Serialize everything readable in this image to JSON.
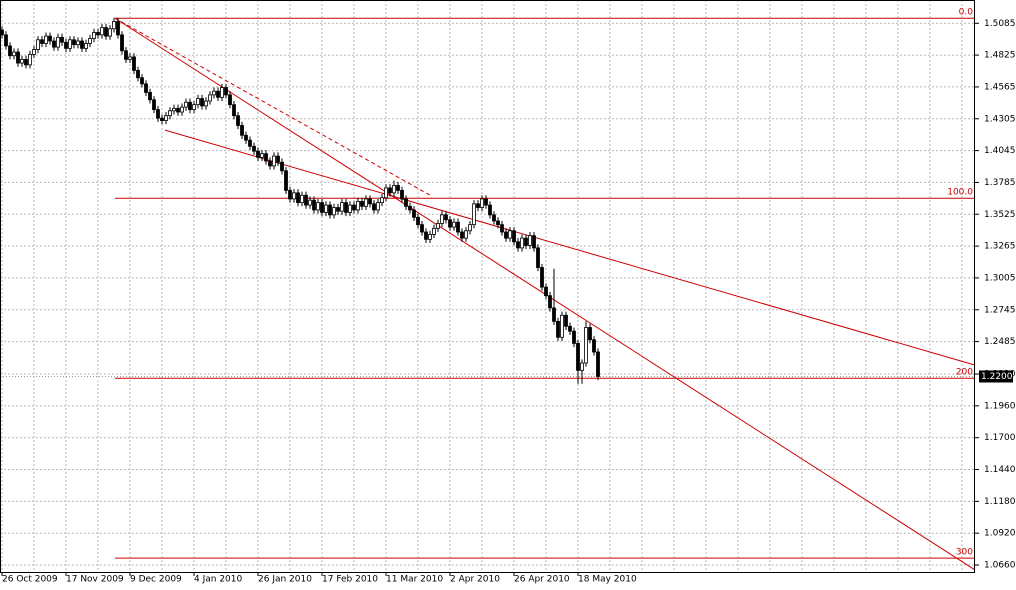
{
  "chart_data": {
    "type": "candlestick",
    "candle_color": "#000000",
    "line_color": "#cc0000",
    "xlim": [
      -0.5,
      243.25
    ],
    "ylim": [
      1.0603,
      1.5275
    ],
    "yticks": [
      1.5085,
      1.4825,
      1.4565,
      1.4305,
      1.4045,
      1.3785,
      1.3525,
      1.3265,
      1.3005,
      1.2745,
      1.2485,
      {
        "value": 1.222,
        "label": "1.2220"
      },
      {
        "value": 1.196,
        "label": "1.1960"
      },
      {
        "value": 1.17,
        "label": "1.1700"
      },
      {
        "value": 1.144,
        "label": "1.1440"
      },
      {
        "value": 1.118,
        "label": "1.1180"
      },
      {
        "value": 1.092,
        "label": "1.0920"
      },
      {
        "value": 1.066,
        "label": "1.0660"
      }
    ],
    "grid": true,
    "categories": [
      "26 Oct 2009",
      null,
      null,
      null,
      null,
      null,
      null,
      null,
      null,
      null,
      null,
      null,
      null,
      null,
      null,
      null,
      "17 Nov 2009",
      null,
      null,
      null,
      null,
      null,
      null,
      null,
      null,
      null,
      null,
      null,
      null,
      null,
      null,
      null,
      "9 Dec 2009",
      null,
      null,
      null,
      null,
      null,
      null,
      null,
      null,
      null,
      null,
      null,
      null,
      null,
      null,
      null,
      "4 Jan 2010",
      null,
      null,
      null,
      null,
      null,
      null,
      null,
      null,
      null,
      null,
      null,
      null,
      null,
      null,
      null,
      "26 Jan 2010",
      null,
      null,
      null,
      null,
      null,
      null,
      null,
      null,
      null,
      null,
      null,
      null,
      null,
      null,
      null,
      "17 Feb 2010",
      null,
      null,
      null,
      null,
      null,
      null,
      null,
      null,
      null,
      null,
      null,
      null,
      null,
      null,
      null,
      "11 Mar 2010",
      null,
      null,
      null,
      null,
      null,
      null,
      null,
      null,
      null,
      null,
      null,
      null,
      null,
      null,
      null,
      "2 Apr 2010",
      null,
      null,
      null,
      null,
      null,
      null,
      null,
      null,
      null,
      null,
      null,
      null,
      null,
      null,
      null,
      "26 Apr 2010",
      null,
      null,
      null,
      null,
      null,
      null,
      null,
      null,
      null,
      null,
      null,
      null,
      null,
      null,
      null,
      "18 May 2010",
      null,
      null,
      null,
      null,
      null
    ],
    "ohlc": [
      [
        1.503,
        1.506,
        1.496,
        1.499
      ],
      [
        1.499,
        1.502,
        1.487,
        1.49
      ],
      [
        1.49,
        1.493,
        1.479,
        1.482
      ],
      [
        1.482,
        1.488,
        1.479,
        1.485
      ],
      [
        1.485,
        1.488,
        1.473,
        1.476
      ],
      [
        1.476,
        1.482,
        1.473,
        1.479
      ],
      [
        1.479,
        1.482,
        1.4715,
        1.4745
      ],
      [
        1.4745,
        1.486,
        1.4715,
        1.483
      ],
      [
        1.483,
        1.49,
        1.48,
        1.487
      ],
      [
        1.487,
        1.498,
        1.484,
        1.495
      ],
      [
        1.495,
        1.498,
        1.489,
        1.492
      ],
      [
        1.492,
        1.501,
        1.489,
        1.498
      ],
      [
        1.498,
        1.501,
        1.491,
        1.494
      ],
      [
        1.494,
        1.497,
        1.486,
        1.489
      ],
      [
        1.489,
        1.5,
        1.486,
        1.497
      ],
      [
        1.497,
        1.5,
        1.49,
        1.493
      ],
      [
        1.493,
        1.496,
        1.485,
        1.488
      ],
      [
        1.488,
        1.498,
        1.485,
        1.495
      ],
      [
        1.495,
        1.498,
        1.488,
        1.491
      ],
      [
        1.491,
        1.497,
        1.488,
        1.494
      ],
      [
        1.494,
        1.497,
        1.485,
        1.488
      ],
      [
        1.488,
        1.495,
        1.485,
        1.492
      ],
      [
        1.492,
        1.499,
        1.489,
        1.496
      ],
      [
        1.496,
        1.504,
        1.493,
        1.501
      ],
      [
        1.501,
        1.504,
        1.496,
        1.499
      ],
      [
        1.499,
        1.508,
        1.496,
        1.505
      ],
      [
        1.505,
        1.508,
        1.495,
        1.498
      ],
      [
        1.498,
        1.507,
        1.495,
        1.504
      ],
      [
        1.504,
        1.513,
        1.501,
        1.51
      ],
      [
        1.51,
        1.513,
        1.496,
        1.499
      ],
      [
        1.499,
        1.502,
        1.483,
        1.486
      ],
      [
        1.486,
        1.489,
        1.476,
        1.479
      ],
      [
        1.479,
        1.484,
        1.476,
        1.481
      ],
      [
        1.481,
        1.484,
        1.467,
        1.47
      ],
      [
        1.47,
        1.473,
        1.461,
        1.464
      ],
      [
        1.464,
        1.467,
        1.456,
        1.459
      ],
      [
        1.459,
        1.462,
        1.449,
        1.452
      ],
      [
        1.452,
        1.455,
        1.443,
        1.446
      ],
      [
        1.446,
        1.449,
        1.435,
        1.438
      ],
      [
        1.438,
        1.441,
        1.428,
        1.431
      ],
      [
        1.431,
        1.434,
        1.426,
        1.429
      ],
      [
        1.429,
        1.436,
        1.426,
        1.433
      ],
      [
        1.433,
        1.44,
        1.43,
        1.437
      ],
      [
        1.437,
        1.442,
        1.434,
        1.439
      ],
      [
        1.439,
        1.442,
        1.433,
        1.436
      ],
      [
        1.436,
        1.443,
        1.433,
        1.44
      ],
      [
        1.44,
        1.447,
        1.437,
        1.444
      ],
      [
        1.444,
        1.447,
        1.435,
        1.438
      ],
      [
        1.438,
        1.445,
        1.435,
        1.442
      ],
      [
        1.442,
        1.45,
        1.439,
        1.447
      ],
      [
        1.447,
        1.45,
        1.438,
        1.441
      ],
      [
        1.441,
        1.448,
        1.438,
        1.445
      ],
      [
        1.445,
        1.453,
        1.442,
        1.45
      ],
      [
        1.45,
        1.456,
        1.447,
        1.453
      ],
      [
        1.453,
        1.456,
        1.445,
        1.448
      ],
      [
        1.448,
        1.459,
        1.445,
        1.456
      ],
      [
        1.456,
        1.459,
        1.447,
        1.45
      ],
      [
        1.45,
        1.453,
        1.439,
        1.442
      ],
      [
        1.442,
        1.445,
        1.43,
        1.433
      ],
      [
        1.433,
        1.436,
        1.422,
        1.425
      ],
      [
        1.425,
        1.428,
        1.414,
        1.417
      ],
      [
        1.417,
        1.42,
        1.41,
        1.413
      ],
      [
        1.413,
        1.416,
        1.405,
        1.408
      ],
      [
        1.408,
        1.411,
        1.401,
        1.404
      ],
      [
        1.404,
        1.407,
        1.396,
        1.399
      ],
      [
        1.399,
        1.405,
        1.396,
        1.402
      ],
      [
        1.402,
        1.405,
        1.393,
        1.396
      ],
      [
        1.396,
        1.399,
        1.389,
        1.392
      ],
      [
        1.392,
        1.403,
        1.389,
        1.4
      ],
      [
        1.4,
        1.403,
        1.392,
        1.395
      ],
      [
        1.395,
        1.398,
        1.385,
        1.388
      ],
      [
        1.388,
        1.391,
        1.369,
        1.372
      ],
      [
        1.372,
        1.375,
        1.362,
        1.365
      ],
      [
        1.365,
        1.373,
        1.362,
        1.37
      ],
      [
        1.37,
        1.373,
        1.359,
        1.362
      ],
      [
        1.362,
        1.371,
        1.359,
        1.368
      ],
      [
        1.368,
        1.371,
        1.357,
        1.36
      ],
      [
        1.36,
        1.367,
        1.357,
        1.364
      ],
      [
        1.364,
        1.367,
        1.353,
        1.356
      ],
      [
        1.356,
        1.365,
        1.353,
        1.362
      ],
      [
        1.362,
        1.365,
        1.351,
        1.354
      ],
      [
        1.354,
        1.363,
        1.351,
        1.36
      ],
      [
        1.36,
        1.363,
        1.349,
        1.352
      ],
      [
        1.352,
        1.361,
        1.349,
        1.358
      ],
      [
        1.358,
        1.361,
        1.352,
        1.355
      ],
      [
        1.355,
        1.365,
        1.352,
        1.362
      ],
      [
        1.362,
        1.365,
        1.351,
        1.354
      ],
      [
        1.354,
        1.363,
        1.351,
        1.36
      ],
      [
        1.36,
        1.363,
        1.353,
        1.356
      ],
      [
        1.356,
        1.366,
        1.353,
        1.363
      ],
      [
        1.363,
        1.366,
        1.356,
        1.359
      ],
      [
        1.359,
        1.368,
        1.356,
        1.365
      ],
      [
        1.365,
        1.368,
        1.358,
        1.361
      ],
      [
        1.361,
        1.364,
        1.353,
        1.356
      ],
      [
        1.356,
        1.365,
        1.353,
        1.362
      ],
      [
        1.362,
        1.369,
        1.359,
        1.366
      ],
      [
        1.366,
        1.377,
        1.363,
        1.374
      ],
      [
        1.374,
        1.377,
        1.367,
        1.37
      ],
      [
        1.37,
        1.38,
        1.367,
        1.376
      ],
      [
        1.376,
        1.379,
        1.369,
        1.372
      ],
      [
        1.372,
        1.375,
        1.362,
        1.365
      ],
      [
        1.365,
        1.368,
        1.356,
        1.359
      ],
      [
        1.359,
        1.362,
        1.353,
        1.356
      ],
      [
        1.356,
        1.359,
        1.347,
        1.35
      ],
      [
        1.35,
        1.353,
        1.341,
        1.344
      ],
      [
        1.344,
        1.347,
        1.335,
        1.338
      ],
      [
        1.338,
        1.341,
        1.329,
        1.332
      ],
      [
        1.332,
        1.339,
        1.329,
        1.336
      ],
      [
        1.336,
        1.344,
        1.333,
        1.341
      ],
      [
        1.341,
        1.348,
        1.338,
        1.345
      ],
      [
        1.345,
        1.355,
        1.342,
        1.352
      ],
      [
        1.352,
        1.355,
        1.345,
        1.348
      ],
      [
        1.348,
        1.351,
        1.339,
        1.342
      ],
      [
        1.342,
        1.349,
        1.339,
        1.346
      ],
      [
        1.346,
        1.349,
        1.335,
        1.338
      ],
      [
        1.338,
        1.341,
        1.33,
        1.333
      ],
      [
        1.333,
        1.342,
        1.33,
        1.339
      ],
      [
        1.339,
        1.347,
        1.336,
        1.344
      ],
      [
        1.344,
        1.364,
        1.341,
        1.361
      ],
      [
        1.361,
        1.364,
        1.355,
        1.358
      ],
      [
        1.358,
        1.368,
        1.355,
        1.365
      ],
      [
        1.365,
        1.368,
        1.357,
        1.36
      ],
      [
        1.36,
        1.363,
        1.349,
        1.352
      ],
      [
        1.352,
        1.355,
        1.344,
        1.347
      ],
      [
        1.347,
        1.35,
        1.341,
        1.344
      ],
      [
        1.344,
        1.347,
        1.335,
        1.338
      ],
      [
        1.338,
        1.341,
        1.33,
        1.333
      ],
      [
        1.333,
        1.342,
        1.33,
        1.339
      ],
      [
        1.339,
        1.342,
        1.327,
        1.33
      ],
      [
        1.33,
        1.333,
        1.322,
        1.325
      ],
      [
        1.325,
        1.336,
        1.322,
        1.333
      ],
      [
        1.333,
        1.336,
        1.324,
        1.327
      ],
      [
        1.327,
        1.338,
        1.324,
        1.335
      ],
      [
        1.335,
        1.338,
        1.322,
        1.325
      ],
      [
        1.325,
        1.328,
        1.306,
        1.309
      ],
      [
        1.309,
        1.312,
        1.29,
        1.293
      ],
      [
        1.293,
        1.296,
        1.283,
        1.286
      ],
      [
        1.286,
        1.289,
        1.273,
        1.276
      ],
      [
        1.276,
        1.308,
        1.262,
        1.265
      ],
      [
        1.265,
        1.268,
        1.249,
        1.252
      ],
      [
        1.252,
        1.273,
        1.249,
        1.27
      ],
      [
        1.27,
        1.273,
        1.258,
        1.261
      ],
      [
        1.261,
        1.264,
        1.254,
        1.257
      ],
      [
        1.257,
        1.26,
        1.244,
        1.247
      ],
      [
        1.247,
        1.25,
        1.214,
        1.225
      ],
      [
        1.225,
        1.234,
        1.214,
        1.231
      ],
      [
        1.231,
        1.265,
        1.228,
        1.26
      ],
      [
        1.26,
        1.263,
        1.247,
        1.25
      ],
      [
        1.25,
        1.253,
        1.237,
        1.24
      ],
      [
        1.24,
        1.243,
        1.217,
        1.22
      ]
    ],
    "lines": [
      {
        "x": [
          28.25,
          243.25
        ],
        "y": [
          1.5126,
          1.062
        ],
        "dashed": false
      },
      {
        "x": [
          28.25,
          107
        ],
        "y": [
          1.5126,
          1.3681
        ],
        "dashed": true
      },
      {
        "x": [
          40.75,
          243.25
        ],
        "y": [
          1.4212,
          1.2293
        ],
        "dashed": false
      }
    ],
    "fib": {
      "start": 28.25,
      "levels": [
        {
          "value": 1.5126,
          "label": "0.0"
        },
        {
          "value": 1.3656,
          "label": "100.0"
        },
        {
          "value": 1.2186,
          "label": "200"
        },
        {
          "value": 1.0716,
          "label": "300"
        }
      ]
    },
    "last_price": {
      "value": 1.22,
      "label": "1.2200"
    }
  }
}
